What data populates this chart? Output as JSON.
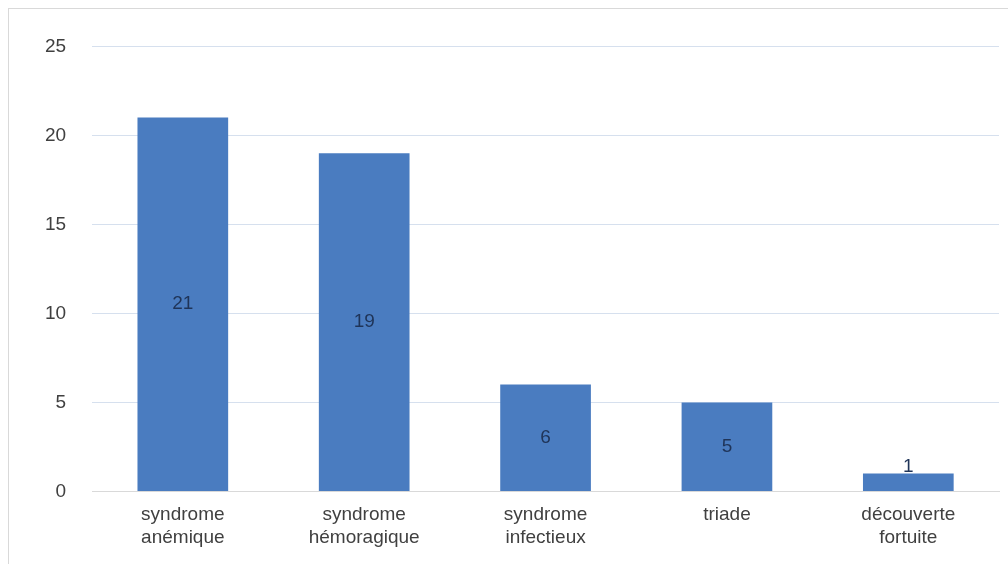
{
  "chart_data": {
    "type": "bar",
    "categories": [
      "syndrome anémique",
      "syndrome hémoragique",
      "syndrome infectieux",
      "triade",
      "découverte fortuite"
    ],
    "values": [
      21,
      19,
      6,
      5,
      1
    ],
    "color": "#4a7cc0",
    "ylim": [
      0,
      25
    ],
    "yticks": [
      0,
      5,
      10,
      15,
      20,
      25
    ],
    "grid": "y",
    "data_labels": true,
    "legend": false
  }
}
